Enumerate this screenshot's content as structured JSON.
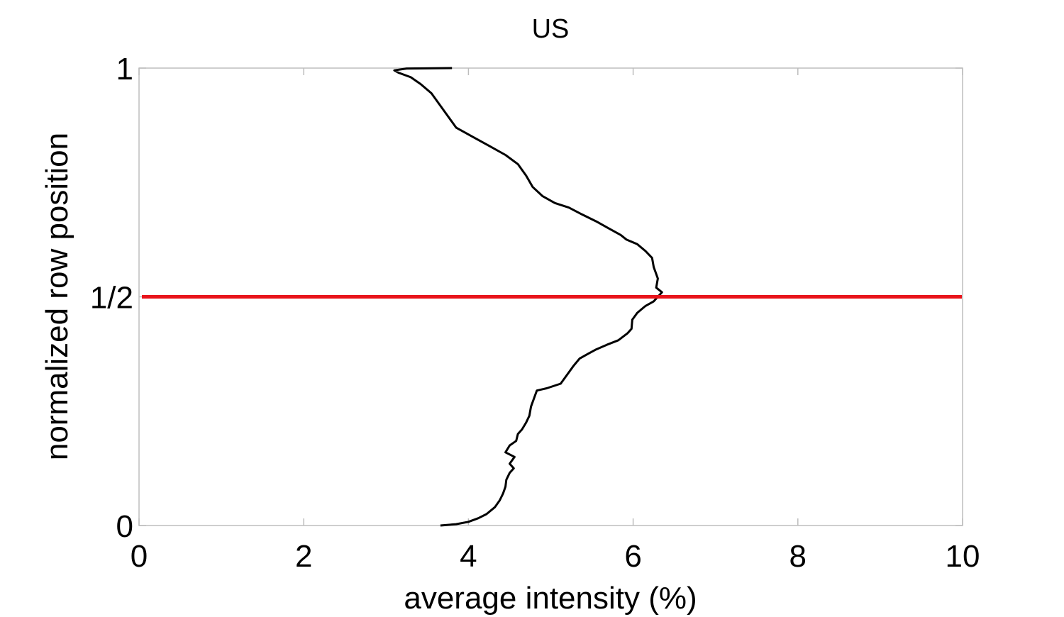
{
  "chart_data": {
    "type": "line",
    "title": "US",
    "xlabel": "average intensity (%)",
    "ylabel": "normalized row position",
    "xlim": [
      0,
      10
    ],
    "ylim": [
      0,
      1
    ],
    "x_ticks": [
      {
        "value": 0,
        "label": "0"
      },
      {
        "value": 2,
        "label": "2"
      },
      {
        "value": 4,
        "label": "4"
      },
      {
        "value": 6,
        "label": "6"
      },
      {
        "value": 8,
        "label": "8"
      },
      {
        "value": 10,
        "label": "10"
      }
    ],
    "y_ticks": [
      {
        "value": 0,
        "label": "0"
      },
      {
        "value": 0.5,
        "label": "1/2"
      },
      {
        "value": 1,
        "label": "1"
      }
    ],
    "grid": false,
    "series": [
      {
        "color": "#000000",
        "points": [
          [
            3.66,
            0.0
          ],
          [
            3.85,
            0.003
          ],
          [
            4.0,
            0.008
          ],
          [
            4.12,
            0.016
          ],
          [
            4.22,
            0.025
          ],
          [
            4.32,
            0.04
          ],
          [
            4.38,
            0.055
          ],
          [
            4.42,
            0.07
          ],
          [
            4.45,
            0.085
          ],
          [
            4.46,
            0.1
          ],
          [
            4.5,
            0.115
          ],
          [
            4.55,
            0.125
          ],
          [
            4.5,
            0.135
          ],
          [
            4.56,
            0.15
          ],
          [
            4.45,
            0.16
          ],
          [
            4.5,
            0.175
          ],
          [
            4.58,
            0.185
          ],
          [
            4.6,
            0.2
          ],
          [
            4.65,
            0.21
          ],
          [
            4.7,
            0.225
          ],
          [
            4.74,
            0.24
          ],
          [
            4.76,
            0.26
          ],
          [
            4.8,
            0.28
          ],
          [
            4.83,
            0.295
          ],
          [
            4.95,
            0.3
          ],
          [
            5.12,
            0.31
          ],
          [
            5.2,
            0.33
          ],
          [
            5.28,
            0.35
          ],
          [
            5.35,
            0.365
          ],
          [
            5.45,
            0.375
          ],
          [
            5.55,
            0.385
          ],
          [
            5.68,
            0.395
          ],
          [
            5.82,
            0.405
          ],
          [
            5.93,
            0.42
          ],
          [
            5.98,
            0.43
          ],
          [
            5.99,
            0.45
          ],
          [
            6.05,
            0.465
          ],
          [
            6.15,
            0.48
          ],
          [
            6.25,
            0.49
          ],
          [
            6.3,
            0.5
          ],
          [
            6.35,
            0.51
          ],
          [
            6.28,
            0.52
          ],
          [
            6.3,
            0.54
          ],
          [
            6.25,
            0.565
          ],
          [
            6.23,
            0.585
          ],
          [
            6.15,
            0.6
          ],
          [
            6.05,
            0.615
          ],
          [
            5.92,
            0.625
          ],
          [
            5.85,
            0.635
          ],
          [
            5.7,
            0.65
          ],
          [
            5.55,
            0.665
          ],
          [
            5.38,
            0.68
          ],
          [
            5.22,
            0.695
          ],
          [
            5.05,
            0.705
          ],
          [
            4.9,
            0.72
          ],
          [
            4.78,
            0.74
          ],
          [
            4.7,
            0.765
          ],
          [
            4.6,
            0.79
          ],
          [
            4.45,
            0.81
          ],
          [
            4.25,
            0.83
          ],
          [
            4.05,
            0.85
          ],
          [
            3.85,
            0.87
          ],
          [
            3.75,
            0.895
          ],
          [
            3.65,
            0.92
          ],
          [
            3.55,
            0.945
          ],
          [
            3.42,
            0.965
          ],
          [
            3.3,
            0.98
          ],
          [
            3.15,
            0.99
          ],
          [
            3.1,
            0.995
          ],
          [
            3.25,
            0.999
          ],
          [
            3.8,
            1.0
          ]
        ]
      }
    ],
    "reference_line": {
      "y": 0.5,
      "color": "#e8141b"
    }
  }
}
